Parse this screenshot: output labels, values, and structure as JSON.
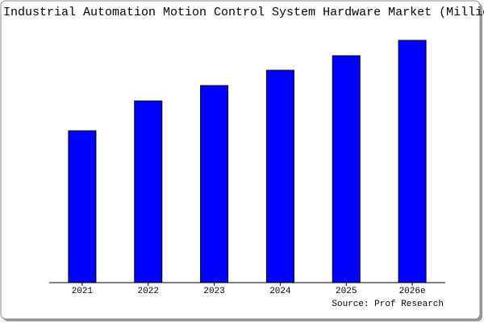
{
  "chart_data": {
    "type": "bar",
    "title": "Industrial Automation Motion Control System Hardware Market (Millio",
    "source": "Source: Prof Research",
    "categories": [
      "2021",
      "2022",
      "2023",
      "2024",
      "2025",
      "2026e"
    ],
    "values": [
      188,
      225,
      244,
      263,
      281,
      300
    ],
    "color": "#0000ff",
    "ylim": [
      0,
      300
    ]
  }
}
